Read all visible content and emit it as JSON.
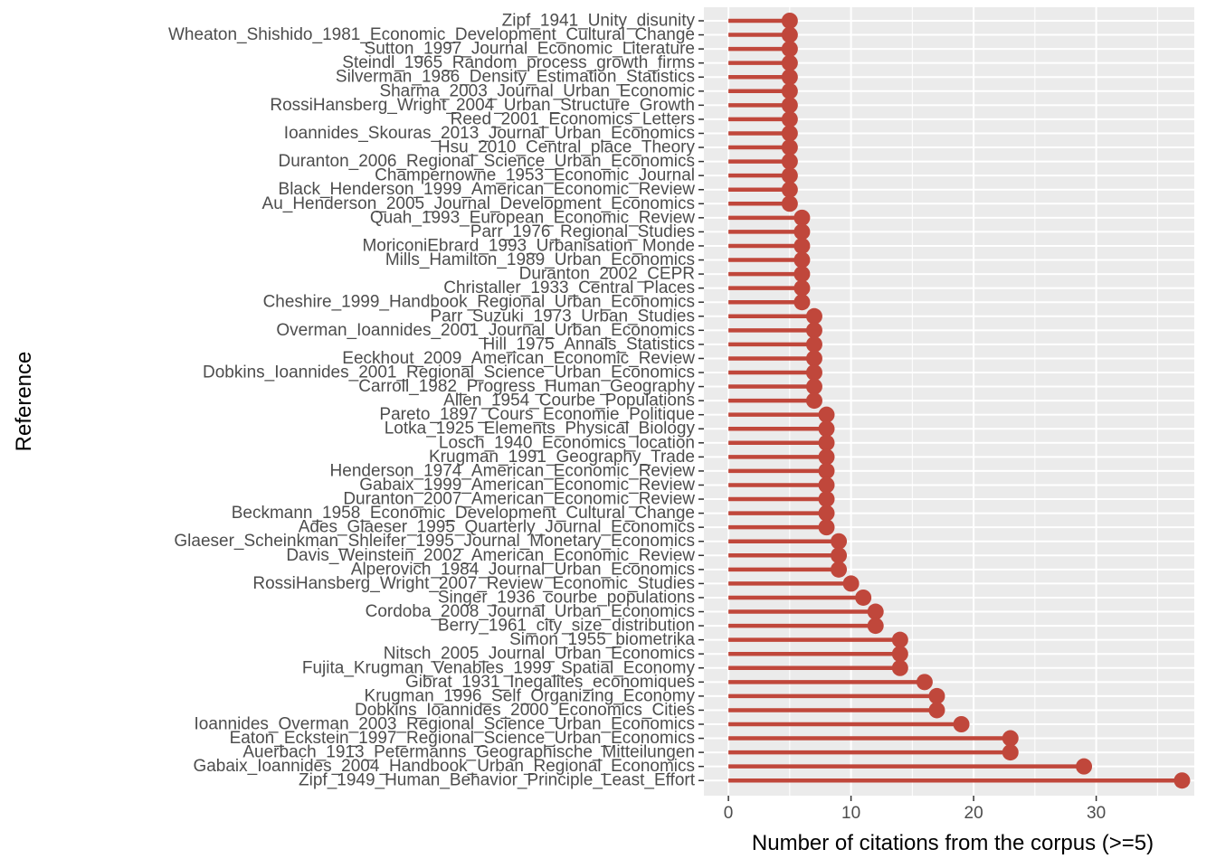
{
  "chart_data": {
    "type": "lollipop",
    "orientation": "horizontal",
    "xlabel": "Number of citations from the corpus (>=5)",
    "ylabel": "Reference",
    "xlim": [
      -2,
      38
    ],
    "x_ticks": [
      0,
      10,
      20,
      30
    ],
    "grid": true,
    "color": "#C0473B",
    "panel_background": "#EBEBEB",
    "categories": [
      "Zipf_1941_Unity_disunity",
      "Wheaton_Shishido_1981_Economic_Development_Cultural_Change",
      "Sutton_1997_Journal_Economic_Literature",
      "Steindl_1965_Random_process_growth_firms",
      "Silverman_1986_Density_Estimation_Statistics",
      "Sharma_2003_Journal_Urban_Economic",
      "RossiHansberg_Wright_2004_Urban_Structure_Growth",
      "Reed_2001_Economics_Letters",
      "Ioannides_Skouras_2013_Journal_Urban_Economics",
      "Hsu_2010_Central_place_Theory",
      "Duranton_2006_Regional_Science_Urban_Economics",
      "Champernowne_1953_Economic_Journal",
      "Black_Henderson_1999_American_Economic_Review",
      "Au_Henderson_2005_Journal_Development_Economics",
      "Quah_1993_European_Economic_Review",
      "Parr_1976_Regional_Studies",
      "MoriconiEbrard_1993_Urbanisation_Monde",
      "Mills_Hamilton_1989_Urban_Economics",
      "Duranton_2002_CEPR",
      "Christaller_1933_Central_Places",
      "Cheshire_1999_Handbook_Regional_Urban_Economics",
      "Parr_Suzuki_1973_Urban_Studies",
      "Overman_Ioannides_2001_Journal_Urban_Economics",
      "Hill_1975_Annals_Statistics",
      "Eeckhout_2009_American_Economic_Review",
      "Dobkins_Ioannides_2001_Regional_Science_Urban_Economics",
      "Carroll_1982_Progress_Human_Geography",
      "Allen_1954_Courbe_Populations",
      "Pareto_1897_Cours_Economie_Politique",
      "Lotka_1925_Elements_Physical_Biology",
      "Losch_1940_Economics_location",
      "Krugman_1991_Geography_Trade",
      "Henderson_1974_American_Economic_Review",
      "Gabaix_1999_American_Economic_Review",
      "Duranton_2007_American_Economic_Review",
      "Beckmann_1958_Economic_Development_Cultural_Change",
      "Ades_Glaeser_1995_Quarterly_Journal_Economics",
      "Glaeser_Scheinkman_Shleifer_1995_Journal_Monetary_Economics",
      "Davis_Weinstein_2002_American_Economic_Review",
      "Alperovich_1984_Journal_Urban_Economics",
      "RossiHansberg_Wright_2007_Review_Economic_Studies",
      "Singer_1936_courbe_populations",
      "Cordoba_2008_Journal_Urban_Economics",
      "Berry_1961_city_size_distribution",
      "Simon_1955_biometrika",
      "Nitsch_2005_Journal_Urban_Economics",
      "Fujita_Krugman_Venables_1999_Spatial_Economy",
      "Gibrat_1931_Inegalites_economiques",
      "Krugman_1996_Self_Organizing_Economy",
      "Dobkins_Ioannides_2000_Economics_Cities",
      "Ioannides_Overman_2003_Regional_Science_Urban_Economics",
      "Eaton_Eckstein_1997_Regional_Science_Urban_Economics",
      "Auerbach_1913_Petermanns_Geographische_Mitteilungen",
      "Gabaix_Ioannides_2004_Handbook_Urban_Regional_Economics",
      "Zipf_1949_Human_Behavior_Principle_Least_Effort"
    ],
    "values": [
      5,
      5,
      5,
      5,
      5,
      5,
      5,
      5,
      5,
      5,
      5,
      5,
      5,
      5,
      6,
      6,
      6,
      6,
      6,
      6,
      6,
      7,
      7,
      7,
      7,
      7,
      7,
      7,
      8,
      8,
      8,
      8,
      8,
      8,
      8,
      8,
      8,
      9,
      9,
      9,
      10,
      11,
      12,
      12,
      14,
      14,
      14,
      16,
      17,
      17,
      19,
      23,
      23,
      29,
      37
    ]
  }
}
